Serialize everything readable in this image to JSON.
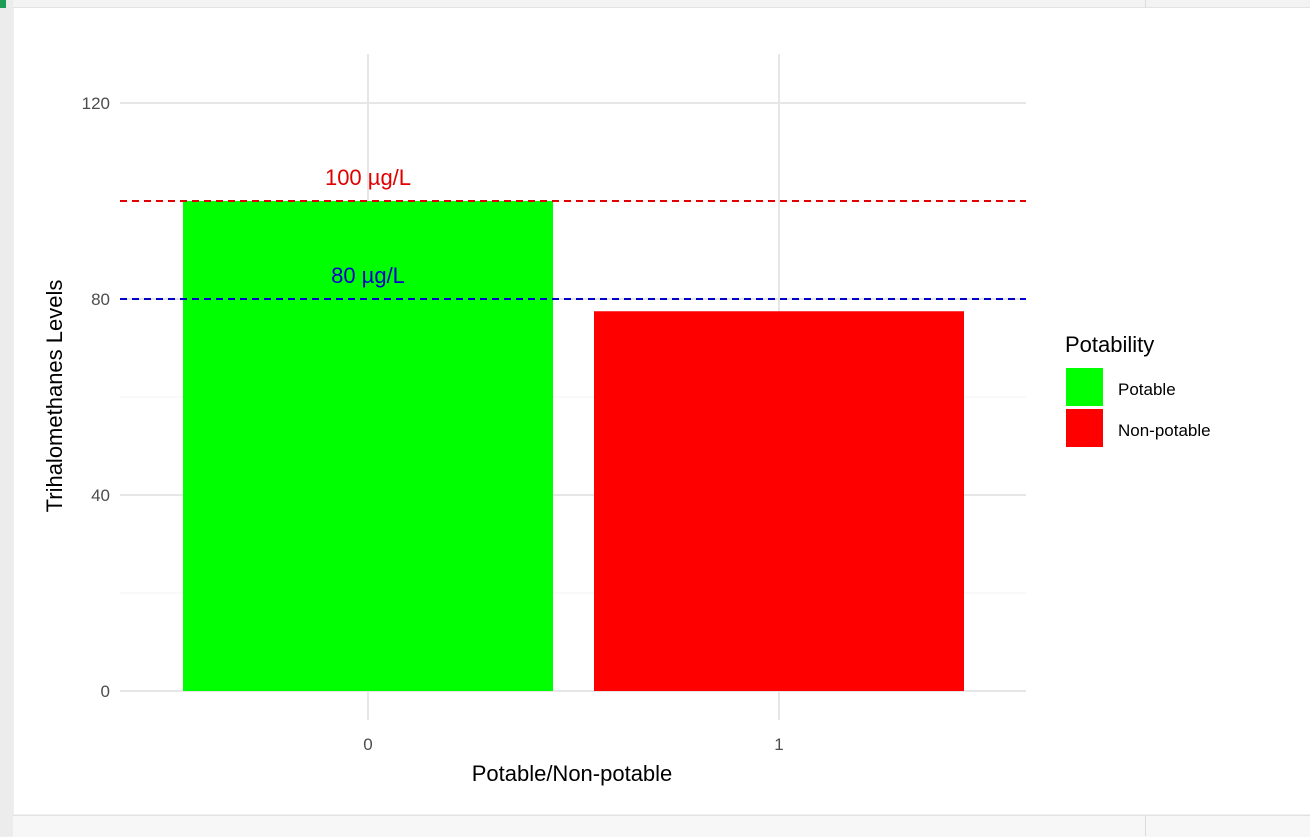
{
  "chart_data": {
    "type": "bar",
    "categories": [
      "0",
      "1"
    ],
    "values": [
      100,
      77.5
    ],
    "bar_colors": [
      "#00ff00",
      "#ff0000"
    ],
    "title": "",
    "xlabel": "Potable/Non-potable",
    "ylabel": "Trihalomethanes Levels",
    "ylim": [
      0,
      130
    ],
    "yticks": [
      0,
      40,
      80,
      120
    ],
    "reference_lines": [
      {
        "value": 100,
        "color": "#e00000",
        "label": "100 µg/L",
        "style": "dashed"
      },
      {
        "value": 80,
        "color": "#0000cc",
        "label": "80 µg/L",
        "style": "dashed"
      }
    ],
    "legend": {
      "title": "Potability",
      "position": "right",
      "entries": [
        {
          "label": "Potable",
          "color": "#00ff00"
        },
        {
          "label": "Non-potable",
          "color": "#ff0000"
        }
      ]
    },
    "grid": true
  }
}
